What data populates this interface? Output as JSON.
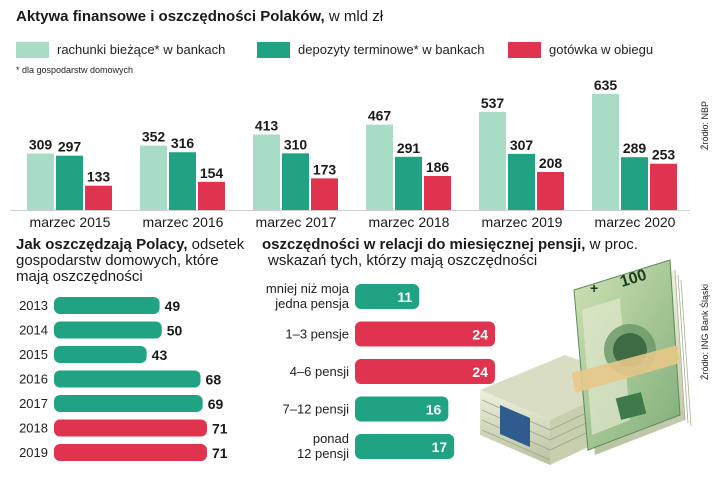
{
  "top": {
    "title_bold": "Aktywa finansowe i oszczędności Polaków,",
    "title_normal": " w mld zł",
    "legend": [
      {
        "label": "rachunki bieżące* w bankach",
        "color": "#a8dcc6"
      },
      {
        "label": "depozyty terminowe* w bankach",
        "color": "#1fa383"
      },
      {
        "label": "gotówka w obiegu",
        "color": "#e0334f"
      }
    ],
    "footnote": "* dla gospodarstw domowych",
    "source": "Źródło: NBP"
  },
  "left": {
    "title_bold": "Jak oszczędzają Polacy,",
    "title_rest1": " odsetek",
    "title_rest2": "gospodarstw domowych, które",
    "title_rest3": "mają oszczędności"
  },
  "right": {
    "title_bold": "oszczędności w relacji do miesięcznej pensji,",
    "title_rest1": " w proc.",
    "title_rest2": "wskazań tych, którzy mają oszczędności",
    "source": "Źródło: ING Bank Śląski"
  },
  "colors": {
    "light": "#a8dcc6",
    "teal": "#1fa383",
    "red": "#e0334f"
  },
  "chart_data": [
    {
      "type": "bar",
      "title": "Aktywa finansowe i oszczędności Polaków, w mld zł",
      "categories": [
        "marzec 2015",
        "marzec 2016",
        "marzec 2017",
        "marzec 2018",
        "marzec 2019",
        "marzec 2020"
      ],
      "series": [
        {
          "name": "rachunki bieżące* w bankach",
          "values": [
            309,
            352,
            413,
            467,
            537,
            635
          ]
        },
        {
          "name": "depozyty terminowe* w bankach",
          "values": [
            297,
            316,
            310,
            291,
            307,
            289
          ]
        },
        {
          "name": "gotówka w obiegu",
          "values": [
            133,
            154,
            173,
            186,
            208,
            253
          ]
        }
      ],
      "ylim": [
        0,
        640
      ]
    },
    {
      "type": "bar",
      "orientation": "horizontal",
      "title": "Jak oszczędzają Polacy, odsetek gospodarstw domowych, które mają oszczędności",
      "categories": [
        "2013",
        "2014",
        "2015",
        "2016",
        "2017",
        "2018",
        "2019"
      ],
      "values": [
        49,
        50,
        43,
        68,
        69,
        71,
        71
      ],
      "highlight": [
        false,
        false,
        false,
        false,
        false,
        true,
        true
      ],
      "xlim": [
        0,
        71
      ]
    },
    {
      "type": "bar",
      "orientation": "horizontal",
      "title": "oszczędności w relacji do miesięcznej pensji, w proc. wskazań tych, którzy mają oszczędności",
      "categories": [
        [
          "mniej niż moja",
          "jedna pensja"
        ],
        [
          "1–3 pensje"
        ],
        [
          "4–6 pensji"
        ],
        [
          "7–12 pensji"
        ],
        [
          "ponad",
          "12 pensji"
        ]
      ],
      "values": [
        11,
        24,
        24,
        16,
        17
      ],
      "highlight": [
        false,
        true,
        true,
        false,
        false
      ],
      "xlim": [
        0,
        24
      ]
    }
  ]
}
